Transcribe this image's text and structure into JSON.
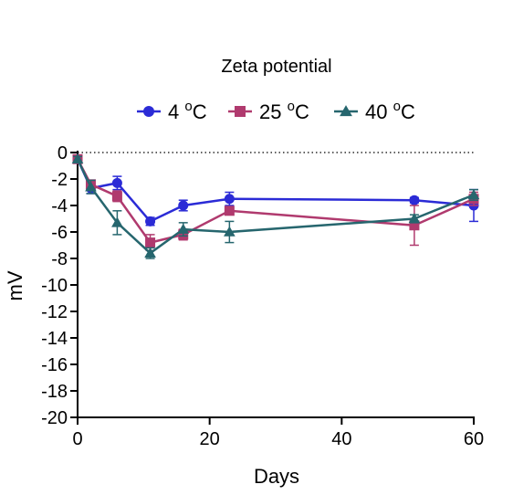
{
  "chart_data": {
    "type": "line",
    "title": "Zeta potential",
    "xlabel": "Days",
    "ylabel": "mV",
    "xlim": [
      0,
      60
    ],
    "ylim": [
      -20,
      0
    ],
    "xticks": [
      0,
      20,
      40,
      60
    ],
    "yticks": [
      0,
      -2,
      -4,
      -6,
      -8,
      -10,
      -12,
      -14,
      -16,
      -18,
      -20
    ],
    "reference_line": {
      "y": 0,
      "style": "dotted"
    },
    "legend": {
      "placement": "top"
    },
    "degree_symbol": "o",
    "series": [
      {
        "name": "4",
        "unit": "C",
        "color": "#2b2bd6",
        "marker": "circle",
        "x": [
          0,
          2,
          6,
          11,
          16,
          23,
          51,
          60
        ],
        "y": [
          -0.5,
          -2.7,
          -2.3,
          -5.2,
          -4.0,
          -3.5,
          -3.6,
          -4.0
        ],
        "err": [
          0.2,
          0.4,
          0.5,
          0.3,
          0.4,
          0.5,
          0.2,
          1.2
        ]
      },
      {
        "name": "25",
        "unit": "C",
        "color": "#b03a6e",
        "marker": "square",
        "x": [
          0,
          2,
          6,
          11,
          16,
          23,
          51,
          60
        ],
        "y": [
          -0.5,
          -2.4,
          -3.3,
          -6.8,
          -6.2,
          -4.4,
          -5.5,
          -3.5
        ],
        "err": [
          0.2,
          0.3,
          0.4,
          0.6,
          0.4,
          0.3,
          1.5,
          0.5
        ]
      },
      {
        "name": "40",
        "unit": "C",
        "color": "#26666e",
        "marker": "triangle",
        "x": [
          0,
          2,
          6,
          11,
          16,
          23,
          51,
          60
        ],
        "y": [
          -0.5,
          -2.6,
          -5.3,
          -7.6,
          -5.8,
          -6.0,
          -5.0,
          -3.2
        ],
        "err": [
          0.2,
          0.5,
          0.9,
          0.4,
          0.5,
          0.8,
          0.3,
          0.4
        ]
      }
    ]
  }
}
